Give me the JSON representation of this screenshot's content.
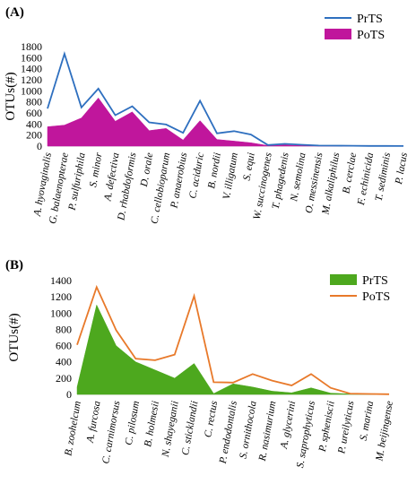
{
  "chart_data": [
    {
      "panel_label": "(A)",
      "type": "line-area",
      "ylabel": "OTUs(#)",
      "ylim": [
        0,
        1800
      ],
      "yticks": [
        0,
        200,
        400,
        600,
        800,
        1000,
        1200,
        1400,
        1600,
        1800
      ],
      "legend_position": "top-right",
      "categories": [
        "A. hyovaginalis",
        "G. balaenopterae",
        "P. sulfuriphila",
        "S. minor",
        "A. defectiva",
        "D. rhabdoformis",
        "D. orale",
        "C. cellobioparum",
        "P. anaerobius",
        "C. aciduric",
        "B. nordii",
        "V. illigatum",
        "S. equi",
        "W. succinogenes",
        "T. phagedenis",
        "N. semolina",
        "O. messinensis",
        "M. alkaliphilus",
        "B. cerclae",
        "F. echinicida",
        "T. sediminis",
        "P. lacus"
      ],
      "series": [
        {
          "name": "PrTS",
          "style": "line",
          "color": "#2e6fbf",
          "values": [
            680,
            1670,
            700,
            1040,
            560,
            720,
            430,
            390,
            240,
            820,
            230,
            270,
            210,
            20,
            40,
            25,
            10,
            8,
            6,
            4,
            3,
            2
          ]
        },
        {
          "name": "PoTS",
          "style": "area",
          "color": "#c0169c",
          "values": [
            350,
            380,
            510,
            870,
            450,
            620,
            280,
            320,
            110,
            460,
            120,
            90,
            60,
            10,
            20,
            10,
            4,
            3,
            2,
            2,
            1,
            1
          ]
        }
      ]
    },
    {
      "panel_label": "(B)",
      "type": "line-area",
      "ylabel": "OTUs(#)",
      "ylim": [
        0,
        1400
      ],
      "yticks": [
        0,
        200,
        400,
        600,
        800,
        1000,
        1200,
        1400
      ],
      "legend_position": "top-right",
      "categories": [
        "B. zoohelcum",
        "A. furcosa",
        "C. carnimorsus",
        "C. pilosum",
        "B. holmesii",
        "N. shayeganii",
        "C. sticklandii",
        "C. rectus",
        "P. endodontalis",
        "S. ornithocola",
        "R. nasimurium",
        "A. glycerini",
        "S. saprophyticus",
        "P. spheniscii",
        "P. ureilyticus",
        "S. marina",
        "M. beijingense"
      ],
      "series": [
        {
          "name": "PrTS",
          "style": "area",
          "color": "#4da81e",
          "values": [
            90,
            1100,
            600,
            400,
            300,
            200,
            380,
            10,
            130,
            90,
            40,
            20,
            80,
            15,
            5,
            2,
            1
          ]
        },
        {
          "name": "PoTS",
          "style": "line",
          "color": "#e8792a",
          "values": [
            610,
            1320,
            790,
            440,
            420,
            490,
            1210,
            150,
            145,
            250,
            170,
            110,
            250,
            80,
            10,
            5,
            2
          ]
        }
      ]
    }
  ]
}
